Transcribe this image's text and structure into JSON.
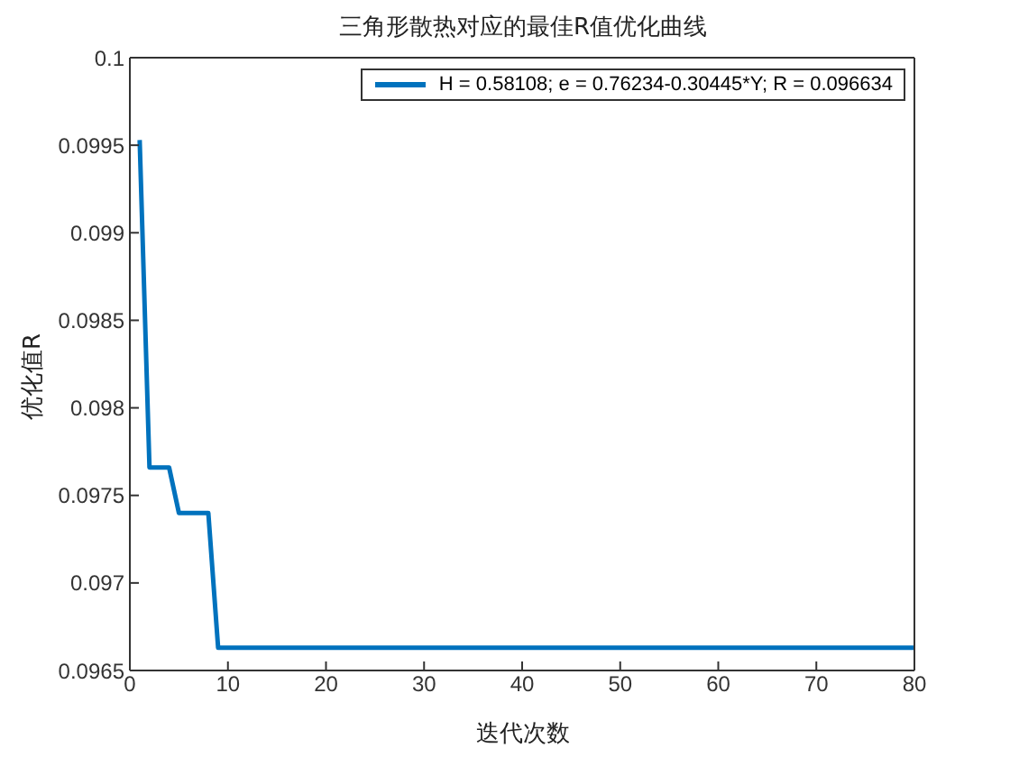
{
  "chart_data": {
    "type": "line",
    "title": "三角形散热对应的最佳R值优化曲线",
    "xlabel": "迭代次数",
    "ylabel": "优化值R",
    "x": [
      1,
      2,
      3,
      4,
      5,
      6,
      7,
      8,
      9,
      80
    ],
    "series": [
      {
        "name": "H = 0.58108; e = 0.76234-0.30445*Y; R = 0.096634",
        "color": "#0072bd",
        "values": [
          0.09953,
          0.09766,
          0.09766,
          0.09766,
          0.0974,
          0.0974,
          0.0974,
          0.0974,
          0.09663,
          0.09663
        ]
      }
    ],
    "xlim": [
      0,
      80
    ],
    "xticks": [
      0,
      10,
      20,
      30,
      40,
      50,
      60,
      70,
      80
    ],
    "ylim": [
      0.0965,
      0.1
    ],
    "yticks": [
      0.0965,
      0.097,
      0.0975,
      0.098,
      0.0985,
      0.099,
      0.0995,
      0.1
    ],
    "grid": false,
    "legend": "top right",
    "marker": "none",
    "line_style": "solid"
  }
}
